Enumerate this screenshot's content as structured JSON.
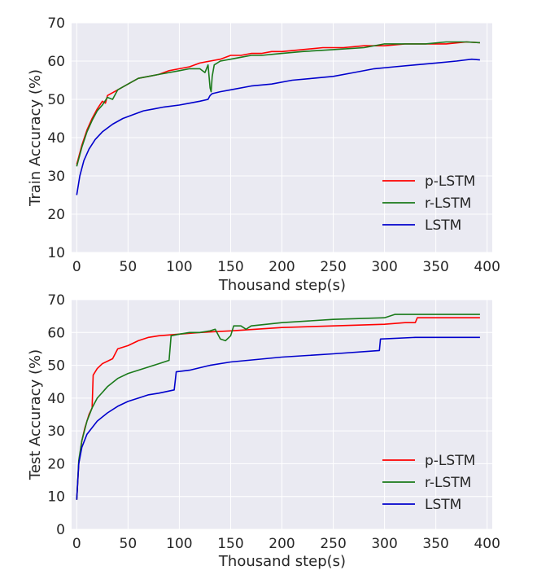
{
  "chart_data": [
    {
      "type": "line",
      "xlabel": "Thousand step(s)",
      "ylabel": "Train Accuracy (%)",
      "xlim": [
        -5,
        405
      ],
      "ylim": [
        10,
        70
      ],
      "xticks": [
        0,
        50,
        100,
        150,
        200,
        250,
        300,
        350,
        400
      ],
      "yticks": [
        10,
        20,
        30,
        40,
        50,
        60,
        70
      ],
      "grid": true,
      "legend_position": "lower-right",
      "series": [
        {
          "name": "p-LSTM",
          "color": "#ff0000",
          "points": [
            [
              0,
              33
            ],
            [
              5,
              38
            ],
            [
              10,
              42
            ],
            [
              15,
              45
            ],
            [
              20,
              47.5
            ],
            [
              25,
              49.5
            ],
            [
              28,
              49
            ],
            [
              30,
              51
            ],
            [
              40,
              52.5
            ],
            [
              50,
              54
            ],
            [
              60,
              55.5
            ],
            [
              70,
              56
            ],
            [
              80,
              56.5
            ],
            [
              90,
              57.5
            ],
            [
              100,
              58
            ],
            [
              110,
              58.5
            ],
            [
              120,
              59.5
            ],
            [
              130,
              60
            ],
            [
              140,
              60.5
            ],
            [
              150,
              61.5
            ],
            [
              160,
              61.5
            ],
            [
              170,
              62
            ],
            [
              180,
              62
            ],
            [
              190,
              62.5
            ],
            [
              200,
              62.5
            ],
            [
              220,
              63
            ],
            [
              240,
              63.5
            ],
            [
              260,
              63.5
            ],
            [
              280,
              64
            ],
            [
              300,
              64
            ],
            [
              320,
              64.5
            ],
            [
              340,
              64.5
            ],
            [
              360,
              64.5
            ],
            [
              380,
              65
            ],
            [
              393,
              64.8
            ]
          ]
        },
        {
          "name": "r-LSTM",
          "color": "#1a7a1a",
          "points": [
            [
              0,
              32.5
            ],
            [
              5,
              37.5
            ],
            [
              10,
              41.5
            ],
            [
              15,
              44.5
            ],
            [
              20,
              47
            ],
            [
              25,
              48.5
            ],
            [
              30,
              50.5
            ],
            [
              35,
              50
            ],
            [
              40,
              52.5
            ],
            [
              50,
              54
            ],
            [
              60,
              55.5
            ],
            [
              70,
              56
            ],
            [
              80,
              56.5
            ],
            [
              90,
              57
            ],
            [
              100,
              57.5
            ],
            [
              110,
              58
            ],
            [
              120,
              58
            ],
            [
              125,
              57
            ],
            [
              128,
              59
            ],
            [
              130,
              53
            ],
            [
              131,
              52
            ],
            [
              132,
              56
            ],
            [
              134,
              59
            ],
            [
              140,
              60
            ],
            [
              150,
              60.5
            ],
            [
              160,
              61
            ],
            [
              170,
              61.5
            ],
            [
              180,
              61.5
            ],
            [
              200,
              62
            ],
            [
              220,
              62.5
            ],
            [
              250,
              63
            ],
            [
              280,
              63.5
            ],
            [
              300,
              64.5
            ],
            [
              320,
              64.5
            ],
            [
              340,
              64.5
            ],
            [
              360,
              65
            ],
            [
              380,
              65
            ],
            [
              393,
              64.8
            ]
          ]
        },
        {
          "name": "LSTM",
          "color": "#0000cc",
          "points": [
            [
              0,
              25
            ],
            [
              3,
              30
            ],
            [
              7,
              34
            ],
            [
              12,
              37
            ],
            [
              18,
              39.5
            ],
            [
              25,
              41.5
            ],
            [
              35,
              43.5
            ],
            [
              45,
              45
            ],
            [
              55,
              46
            ],
            [
              65,
              47
            ],
            [
              75,
              47.5
            ],
            [
              85,
              48
            ],
            [
              100,
              48.5
            ],
            [
              110,
              49
            ],
            [
              120,
              49.5
            ],
            [
              128,
              50
            ],
            [
              130,
              51
            ],
            [
              132,
              51.5
            ],
            [
              140,
              52
            ],
            [
              150,
              52.5
            ],
            [
              170,
              53.5
            ],
            [
              190,
              54
            ],
            [
              210,
              55
            ],
            [
              230,
              55.5
            ],
            [
              250,
              56
            ],
            [
              270,
              57
            ],
            [
              290,
              58
            ],
            [
              310,
              58.5
            ],
            [
              330,
              59
            ],
            [
              350,
              59.5
            ],
            [
              370,
              60
            ],
            [
              385,
              60.5
            ],
            [
              393,
              60.3
            ]
          ]
        }
      ]
    },
    {
      "type": "line",
      "xlabel": "Thousand step(s)",
      "ylabel": "Test Accuracy (%)",
      "xlim": [
        -5,
        405
      ],
      "ylim": [
        0,
        70
      ],
      "xticks": [
        0,
        50,
        100,
        150,
        200,
        250,
        300,
        350,
        400
      ],
      "yticks": [
        0,
        10,
        20,
        30,
        40,
        50,
        60,
        70
      ],
      "grid": true,
      "legend_position": "lower-right",
      "series": [
        {
          "name": "p-LSTM",
          "color": "#ff0000",
          "points": [
            [
              0,
              9
            ],
            [
              2,
              20
            ],
            [
              5,
              27
            ],
            [
              8,
              31
            ],
            [
              12,
              35
            ],
            [
              15,
              37
            ],
            [
              16,
              47
            ],
            [
              20,
              49
            ],
            [
              25,
              50.5
            ],
            [
              35,
              52
            ],
            [
              40,
              55
            ],
            [
              50,
              56
            ],
            [
              60,
              57.5
            ],
            [
              70,
              58.5
            ],
            [
              80,
              59
            ],
            [
              100,
              59.5
            ],
            [
              120,
              60
            ],
            [
              150,
              60.5
            ],
            [
              200,
              61.5
            ],
            [
              250,
              62
            ],
            [
              300,
              62.5
            ],
            [
              320,
              63
            ],
            [
              330,
              63
            ],
            [
              332,
              64.5
            ],
            [
              360,
              64.5
            ],
            [
              393,
              64.5
            ]
          ]
        },
        {
          "name": "r-LSTM",
          "color": "#1a7a1a",
          "points": [
            [
              0,
              9
            ],
            [
              2,
              21
            ],
            [
              5,
              27
            ],
            [
              10,
              33
            ],
            [
              15,
              37
            ],
            [
              20,
              40
            ],
            [
              30,
              43.5
            ],
            [
              40,
              46
            ],
            [
              50,
              47.5
            ],
            [
              60,
              48.5
            ],
            [
              70,
              49.5
            ],
            [
              80,
              50.5
            ],
            [
              90,
              51.5
            ],
            [
              92,
              59
            ],
            [
              100,
              59.5
            ],
            [
              110,
              60
            ],
            [
              120,
              60
            ],
            [
              130,
              60.5
            ],
            [
              135,
              61
            ],
            [
              140,
              58
            ],
            [
              145,
              57.5
            ],
            [
              150,
              59
            ],
            [
              153,
              62
            ],
            [
              160,
              62
            ],
            [
              165,
              61
            ],
            [
              170,
              62
            ],
            [
              200,
              63
            ],
            [
              250,
              64
            ],
            [
              300,
              64.5
            ],
            [
              310,
              65.5
            ],
            [
              350,
              65.5
            ],
            [
              393,
              65.5
            ]
          ]
        },
        {
          "name": "LSTM",
          "color": "#0000cc",
          "points": [
            [
              0,
              9
            ],
            [
              2,
              20
            ],
            [
              5,
              25
            ],
            [
              10,
              29
            ],
            [
              20,
              33
            ],
            [
              30,
              35.5
            ],
            [
              40,
              37.5
            ],
            [
              50,
              39
            ],
            [
              60,
              40
            ],
            [
              70,
              41
            ],
            [
              80,
              41.5
            ],
            [
              95,
              42.5
            ],
            [
              97,
              48
            ],
            [
              110,
              48.5
            ],
            [
              130,
              50
            ],
            [
              150,
              51
            ],
            [
              200,
              52.5
            ],
            [
              250,
              53.5
            ],
            [
              295,
              54.5
            ],
            [
              296,
              58
            ],
            [
              330,
              58.5
            ],
            [
              393,
              58.5
            ]
          ]
        }
      ]
    }
  ]
}
